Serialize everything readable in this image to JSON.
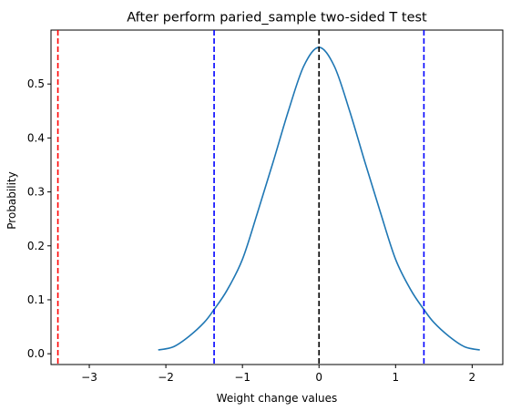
{
  "chart_data": {
    "type": "line",
    "title": "After perform paried_sample two-sided T test",
    "xlabel": "Weight change values",
    "ylabel": "Probability",
    "xlim": [
      -3.5,
      2.4
    ],
    "ylim": [
      -0.02,
      0.6
    ],
    "x_ticks": [
      -3,
      -2,
      -1,
      0,
      1,
      2
    ],
    "y_ticks": [
      0.0,
      0.1,
      0.2,
      0.3,
      0.4,
      0.5
    ],
    "x_tick_labels": [
      "−3",
      "−2",
      "−1",
      "0",
      "1",
      "2"
    ],
    "y_tick_labels": [
      "0.0",
      "0.1",
      "0.2",
      "0.3",
      "0.4",
      "0.5"
    ],
    "grid": false,
    "series": [
      {
        "color": "#1f77b4",
        "x": [
          -2.1,
          -1.9,
          -1.7,
          -1.5,
          -1.37,
          -1.2,
          -1.0,
          -0.8,
          -0.6,
          -0.4,
          -0.2,
          0.0,
          0.2,
          0.4,
          0.6,
          0.8,
          1.0,
          1.2,
          1.37,
          1.5,
          1.7,
          1.9,
          2.1
        ],
        "y": [
          0.007,
          0.013,
          0.032,
          0.058,
          0.082,
          0.118,
          0.175,
          0.263,
          0.355,
          0.45,
          0.533,
          0.568,
          0.533,
          0.45,
          0.355,
          0.263,
          0.175,
          0.118,
          0.082,
          0.058,
          0.032,
          0.013,
          0.007
        ]
      }
    ],
    "vlines": [
      {
        "x": -3.41,
        "color": "#ff0000",
        "style": "dashed"
      },
      {
        "x": -1.37,
        "color": "#0000ff",
        "style": "dashed"
      },
      {
        "x": 0.0,
        "color": "#000000",
        "style": "dashed"
      },
      {
        "x": 1.37,
        "color": "#0000ff",
        "style": "dashed"
      }
    ]
  }
}
